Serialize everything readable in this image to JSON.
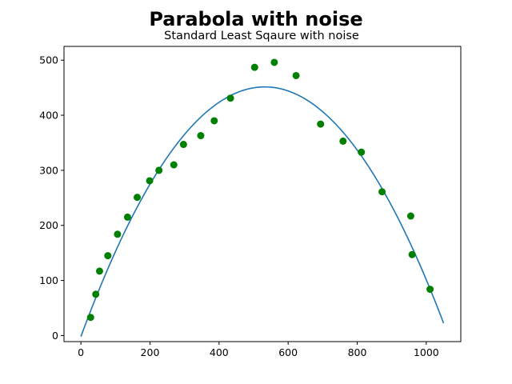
{
  "chart_data": {
    "type": "scatter",
    "title": "Parabola with noise",
    "subtitle": "Standard Least Sqaure with noise",
    "xlabel": "",
    "ylabel": "",
    "xlim": [
      -49,
      1100
    ],
    "ylim": [
      -11,
      525
    ],
    "xticks": [
      0,
      200,
      400,
      600,
      800,
      1000
    ],
    "yticks": [
      0,
      100,
      200,
      300,
      400,
      500
    ],
    "grid": false,
    "series": [
      {
        "kind": "scatter",
        "color": "#008000",
        "points": [
          [
            28,
            33
          ],
          [
            43,
            75
          ],
          [
            54,
            117
          ],
          [
            78,
            145
          ],
          [
            106,
            184
          ],
          [
            135,
            215
          ],
          [
            163,
            251
          ],
          [
            199,
            281
          ],
          [
            226,
            300
          ],
          [
            269,
            310
          ],
          [
            297,
            347
          ],
          [
            347,
            363
          ],
          [
            386,
            390
          ],
          [
            433,
            431
          ],
          [
            503,
            487
          ],
          [
            560,
            496
          ],
          [
            623,
            472
          ],
          [
            694,
            384
          ],
          [
            759,
            353
          ],
          [
            812,
            333
          ],
          [
            872,
            261
          ],
          [
            955,
            217
          ],
          [
            959,
            147
          ],
          [
            1011,
            84
          ]
        ]
      },
      {
        "kind": "line",
        "color": "#1f77b4",
        "fit": {
          "a": -0.0016,
          "vertex_x": 532.29,
          "vertex_y": 451.47
        },
        "x_range": [
          0,
          1050
        ]
      }
    ]
  }
}
